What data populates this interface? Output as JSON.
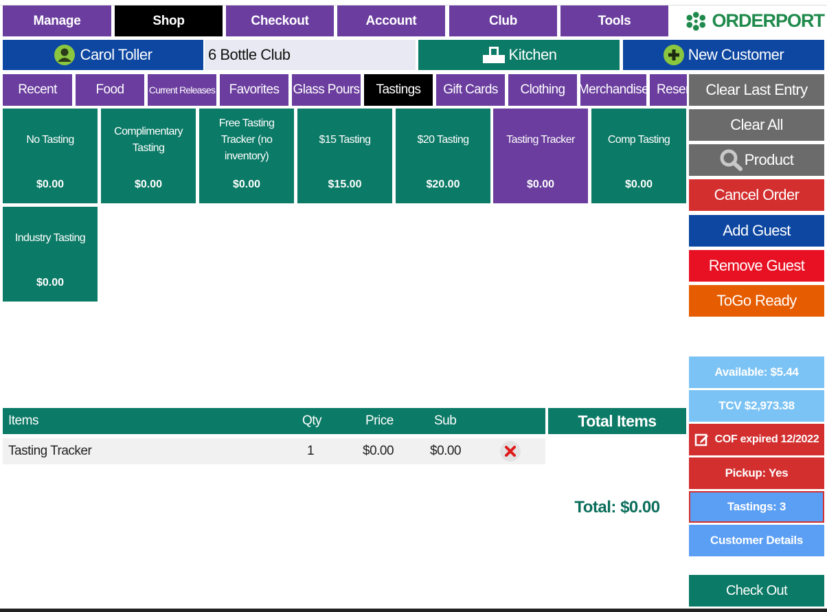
{
  "nav": {
    "tabs": [
      "Manage",
      "Shop",
      "Checkout",
      "Account",
      "Club",
      "Tools"
    ],
    "brand": "ORDERPORT"
  },
  "customer": {
    "name": "Carol Toller",
    "club": "6 Bottle Club",
    "kitchen_label": "Kitchen",
    "new_customer_label": "New Customer"
  },
  "categories": [
    "Recent",
    "Food",
    "Current Releases",
    "Favorites",
    "Glass Pours",
    "Tastings",
    "Gift Cards",
    "Clothing",
    "Merchandise",
    "Reserv"
  ],
  "products": [
    {
      "name": "No Tasting",
      "price": "$0.00"
    },
    {
      "name": "Complimentary Tasting",
      "price": "$0.00"
    },
    {
      "name": "Free Tasting Tracker (no inventory)",
      "price": "$0.00"
    },
    {
      "name": "$15 Tasting",
      "price": "$15.00"
    },
    {
      "name": "$20 Tasting",
      "price": "$20.00"
    },
    {
      "name": "Tasting Tracker",
      "price": "$0.00"
    },
    {
      "name": "Comp Tasting",
      "price": "$0.00"
    },
    {
      "name": "Industry Tasting",
      "price": "$0.00"
    }
  ],
  "actions": {
    "clear_last": "Clear Last Entry",
    "clear_all": "Clear All",
    "product": "Product",
    "cancel_order": "Cancel Order",
    "add_guest": "Add Guest",
    "remove_guest": "Remove Guest",
    "togo_ready": "ToGo Ready"
  },
  "status": {
    "available": "Available: $5.44",
    "tcv": "TCV $2,973.38",
    "cof": "COF expired 12/2022",
    "pickup": "Pickup: Yes",
    "tastings": "Tastings: 3",
    "details": "Customer Details",
    "checkout": "Check Out"
  },
  "table": {
    "headers": {
      "items": "Items",
      "qty": "Qty",
      "price": "Price",
      "sub": "Sub"
    },
    "rows": [
      {
        "item": "Tasting Tracker",
        "qty": "1",
        "price": "$0.00",
        "sub": "$0.00"
      }
    ]
  },
  "summary": {
    "total_items_label": "Total Items",
    "total": "Total: $0.00"
  },
  "colors": {
    "purple": "#6a3d9e",
    "teal": "#0b7a66",
    "blue": "#0d47a1",
    "red": "#d32f2f",
    "orange": "#e65c00",
    "light_blue": "#5b9ff5",
    "sky_blue": "#7cc3f5",
    "gray": "#6b6b6b"
  }
}
